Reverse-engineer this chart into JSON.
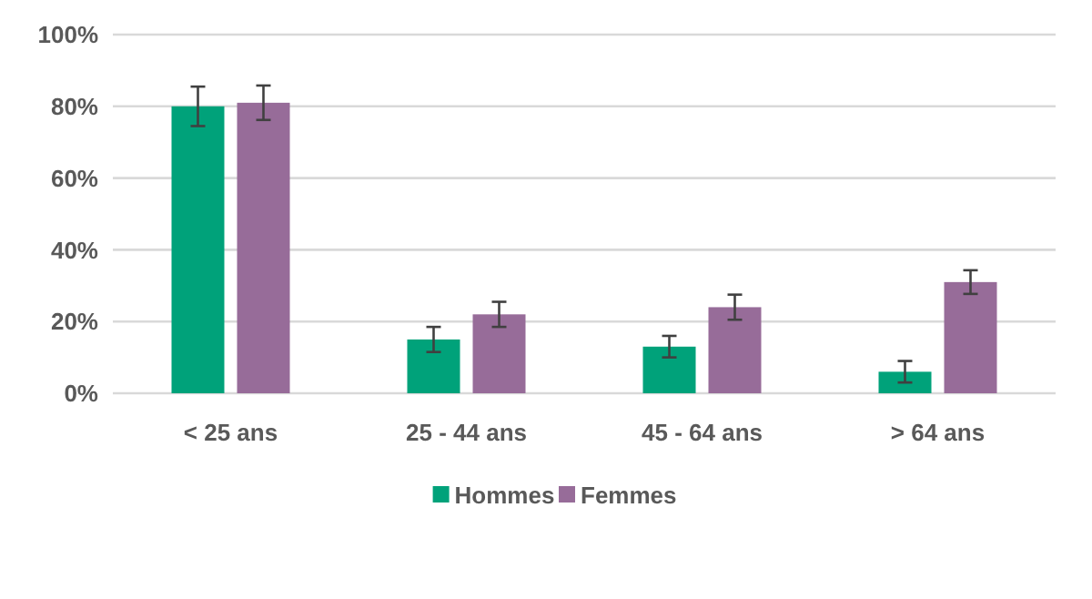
{
  "chart_data": {
    "type": "bar",
    "categories": [
      "< 25 ans",
      "25 - 44 ans",
      "45 - 64 ans",
      "> 64 ans"
    ],
    "series": [
      {
        "name": "Hommes",
        "color": "#00a27a",
        "values": [
          80,
          15,
          13,
          6
        ],
        "errors": [
          5.5,
          3.5,
          3,
          3
        ]
      },
      {
        "name": "Femmes",
        "color": "#976c99",
        "values": [
          81,
          22,
          24,
          31
        ],
        "errors": [
          4.8,
          3.5,
          3.5,
          3.3
        ]
      }
    ],
    "ylim": [
      0,
      100
    ],
    "yticks": [
      {
        "value": 0,
        "label": "0%"
      },
      {
        "value": 20,
        "label": "20%"
      },
      {
        "value": 40,
        "label": "40%"
      },
      {
        "value": 60,
        "label": "60%"
      },
      {
        "value": 80,
        "label": "80%"
      },
      {
        "value": 100,
        "label": "100%"
      }
    ],
    "grid": "y",
    "legend": "bottom"
  }
}
